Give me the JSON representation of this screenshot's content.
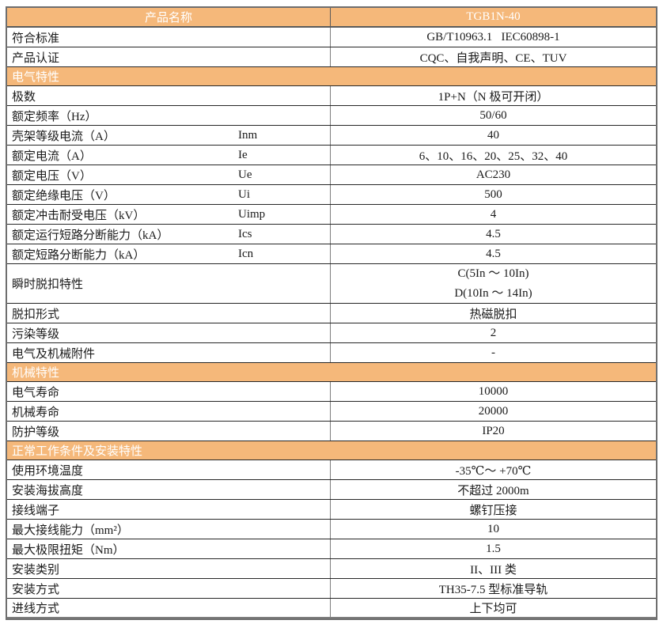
{
  "colors": {
    "accent_orange": "#F5B87A",
    "header_text": "#FFFFFF",
    "body_text": "#1A1A1A",
    "grid_dark": "#262626",
    "grid_gray": "#7D7D7D",
    "outer_border": "#6E6E6E"
  },
  "table": {
    "rows": [
      {
        "type": "header",
        "label": "产品名称",
        "value": "TGB1N-40"
      },
      {
        "type": "data",
        "label": "符合标准",
        "value": "GB/T10963.1   IEC60898-1"
      },
      {
        "type": "data",
        "label": "产品认证",
        "value": "CQC、自我声明、CE、TUV"
      },
      {
        "type": "section",
        "label": "电气特性"
      },
      {
        "type": "data",
        "label": "极数",
        "value": "1P+N（N 极可开闭）"
      },
      {
        "type": "data",
        "label": "额定频率（Hz）",
        "value": "50/60"
      },
      {
        "type": "data",
        "label": "壳架等级电流（A）",
        "symbol": "Inm",
        "value": "40"
      },
      {
        "type": "data",
        "label": "额定电流（A）",
        "symbol": "Ie",
        "value": "6、10、16、20、25、32、40"
      },
      {
        "type": "data",
        "label": "额定电压（V）",
        "symbol": "Ue",
        "value": "AC230"
      },
      {
        "type": "data",
        "label": "额定绝缘电压（V）",
        "symbol": "Ui",
        "value": "500"
      },
      {
        "type": "data",
        "label": "额定冲击耐受电压（kV）",
        "symbol": "Uimp",
        "value": "4"
      },
      {
        "type": "data",
        "label": "额定运行短路分断能力（kA）",
        "symbol": "Ics",
        "value": "4.5"
      },
      {
        "type": "data",
        "label": "额定短路分断能力（kA）",
        "symbol": "Icn",
        "value": "4.5"
      },
      {
        "type": "data2",
        "label": "瞬时脱扣特性",
        "values": [
          "C(5In ～ 10In)",
          "D(10In ～ 14In)"
        ]
      },
      {
        "type": "data",
        "label": "脱扣形式",
        "value": "热磁脱扣"
      },
      {
        "type": "data",
        "label": "污染等级",
        "value": "2"
      },
      {
        "type": "data",
        "label": "电气及机械附件",
        "value": "-"
      },
      {
        "type": "section",
        "label": "机械特性"
      },
      {
        "type": "data",
        "label": "电气寿命",
        "value": "10000"
      },
      {
        "type": "data",
        "label": "机械寿命",
        "value": "20000"
      },
      {
        "type": "data",
        "label": "防护等级",
        "value": "IP20"
      },
      {
        "type": "section",
        "label": "正常工作条件及安装特性"
      },
      {
        "type": "data",
        "label": "使用环境温度",
        "value": "-35℃～ +70℃"
      },
      {
        "type": "data",
        "label": "安装海拔高度",
        "value": "不超过 2000m"
      },
      {
        "type": "data",
        "label": "接线端子",
        "value": "螺钉压接"
      },
      {
        "type": "data",
        "label": "最大接线能力（mm²）",
        "value": "10"
      },
      {
        "type": "data",
        "label": "最大极限扭矩（Nm）",
        "value": "1.5"
      },
      {
        "type": "data",
        "label": "安装类别",
        "value": "II、III 类"
      },
      {
        "type": "data",
        "label": "安装方式",
        "value": "TH35-7.5 型标准导轨"
      },
      {
        "type": "data",
        "label": "进线方式",
        "value": "上下均可"
      }
    ]
  }
}
